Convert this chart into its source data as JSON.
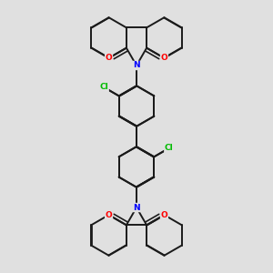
{
  "background_color": "#e0e0e0",
  "line_color": "#1a1a1a",
  "bond_width": 1.4,
  "atom_colors": {
    "N": "#0000ff",
    "O": "#ff0000",
    "Cl": "#00bb00",
    "C": "#1a1a1a"
  },
  "figure_size": [
    3.0,
    3.0
  ],
  "dpi": 100
}
